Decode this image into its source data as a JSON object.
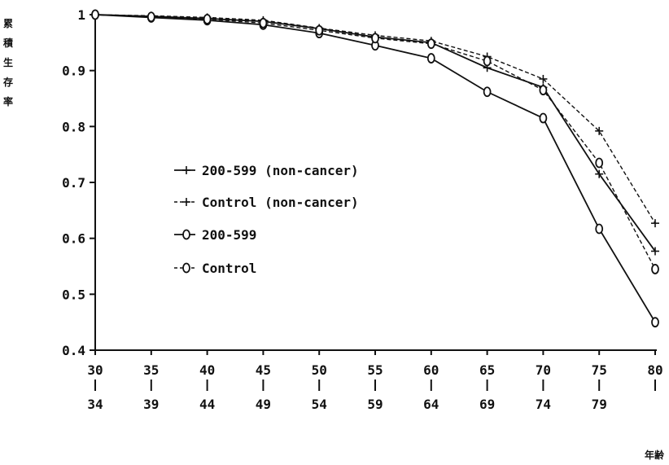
{
  "chart_data": {
    "type": "line",
    "ylabel": "累積生存率",
    "xlabel": "年齢",
    "ylim": [
      0.4,
      1.0
    ],
    "yticks": [
      "0.4",
      "0.5",
      "0.6",
      "0.7",
      "0.8",
      "0.9",
      "1"
    ],
    "ytick_values": [
      0.4,
      0.5,
      0.6,
      0.7,
      0.8,
      0.9,
      1.0
    ],
    "categories": [
      {
        "top": "30",
        "bottom": "34"
      },
      {
        "top": "35",
        "bottom": "39"
      },
      {
        "top": "40",
        "bottom": "44"
      },
      {
        "top": "45",
        "bottom": "49"
      },
      {
        "top": "50",
        "bottom": "54"
      },
      {
        "top": "55",
        "bottom": "59"
      },
      {
        "top": "60",
        "bottom": "64"
      },
      {
        "top": "65",
        "bottom": "69"
      },
      {
        "top": "70",
        "bottom": "74"
      },
      {
        "top": "75",
        "bottom": "79"
      },
      {
        "top": "80",
        "bottom": ""
      }
    ],
    "grid": false,
    "legend_position": "center-left",
    "series": [
      {
        "name": "200-599 (non-cancer)",
        "line": "solid",
        "marker": "plus",
        "values": [
          1.0,
          0.997,
          0.993,
          0.988,
          0.975,
          0.96,
          0.95,
          0.905,
          0.87,
          0.715,
          0.577
        ]
      },
      {
        "name": "Control (non-cancer)",
        "line": "dashed",
        "marker": "plus",
        "values": [
          1.0,
          0.998,
          0.995,
          0.99,
          0.976,
          0.963,
          0.953,
          0.925,
          0.885,
          0.792,
          0.627
        ]
      },
      {
        "name": "200-599",
        "line": "solid",
        "marker": "circle",
        "values": [
          1.0,
          0.995,
          0.99,
          0.982,
          0.967,
          0.945,
          0.922,
          0.862,
          0.815,
          0.617,
          0.45
        ]
      },
      {
        "name": "Control",
        "line": "dashed",
        "marker": "circle",
        "values": [
          1.0,
          0.996,
          0.992,
          0.985,
          0.972,
          0.958,
          0.948,
          0.917,
          0.865,
          0.735,
          0.545
        ]
      }
    ]
  }
}
